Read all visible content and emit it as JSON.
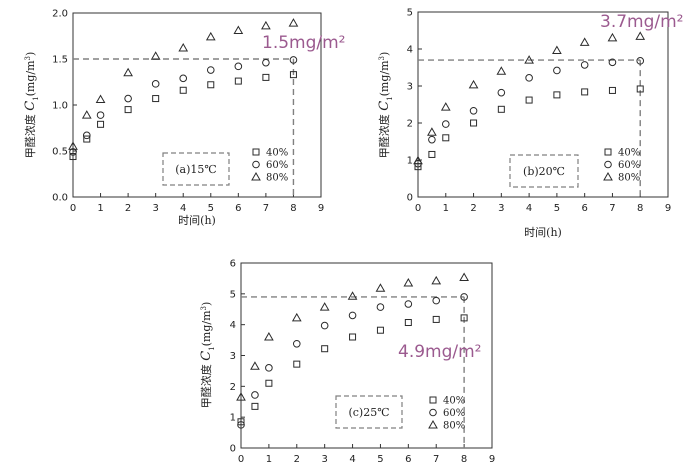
{
  "chart_data": [
    {
      "type": "scatter",
      "xlabel": "时间(h)",
      "ylabel": "甲醛浓度 C₁(mg/m³)",
      "ylabel_main": "甲醛浓度 ",
      "ylabel_var": "C",
      "ylabel_sub": "1",
      "ylabel_unit": "(mg/m",
      "ylabel_sup": "3",
      "ylabel_close": ")",
      "xlim": [
        0,
        9
      ],
      "ylim": [
        0,
        2.0
      ],
      "xticks": [
        "0",
        "1",
        "2",
        "3",
        "4",
        "5",
        "6",
        "7",
        "8",
        "9"
      ],
      "yticks": [
        "0.0",
        "0.5",
        "1.0",
        "1.5",
        "2.0"
      ],
      "condition_label": "(a)15℃",
      "annotation": "1.5mg/m²",
      "reference": {
        "x": 8,
        "y": 1.5
      },
      "series": [
        {
          "name": "40%",
          "marker": "square",
          "x": [
            0,
            0.5,
            1,
            2,
            3,
            4,
            5,
            6,
            7,
            8
          ],
          "y": [
            0.44,
            0.63,
            0.79,
            0.95,
            1.07,
            1.16,
            1.22,
            1.26,
            1.3,
            1.33
          ]
        },
        {
          "name": "60%",
          "marker": "circle",
          "x": [
            0,
            0.5,
            1,
            2,
            3,
            4,
            5,
            6,
            7,
            8
          ],
          "y": [
            0.49,
            0.67,
            0.89,
            1.07,
            1.23,
            1.29,
            1.38,
            1.42,
            1.46,
            1.49
          ]
        },
        {
          "name": "80%",
          "marker": "triangle",
          "x": [
            0,
            0.5,
            1,
            2,
            3,
            4,
            5,
            6,
            7,
            8
          ],
          "y": [
            0.55,
            0.89,
            1.06,
            1.35,
            1.53,
            1.62,
            1.74,
            1.81,
            1.86,
            1.89
          ]
        }
      ]
    },
    {
      "type": "scatter",
      "xlabel": "时间(h)",
      "ylabel": "甲醛浓度 C₁(mg/m³)",
      "ylabel_main": "甲醛浓度 ",
      "ylabel_var": "C",
      "ylabel_sub": "1",
      "ylabel_unit": "(mg/m",
      "ylabel_sup": "3",
      "ylabel_close": ")",
      "xlim": [
        0,
        9
      ],
      "ylim": [
        0,
        5
      ],
      "xticks": [
        "0",
        "1",
        "2",
        "3",
        "4",
        "5",
        "6",
        "7",
        "8",
        "9"
      ],
      "yticks": [
        "0",
        "1",
        "2",
        "3",
        "4",
        "5"
      ],
      "condition_label": "(b)20℃",
      "annotation": "3.7mg/m²",
      "reference": {
        "x": 8,
        "y": 3.7
      },
      "series": [
        {
          "name": "40%",
          "marker": "square",
          "x": [
            0,
            0.5,
            1,
            2,
            3,
            4,
            5,
            6,
            7,
            8
          ],
          "y": [
            0.82,
            1.15,
            1.6,
            2.0,
            2.37,
            2.62,
            2.76,
            2.84,
            2.88,
            2.92
          ]
        },
        {
          "name": "60%",
          "marker": "circle",
          "x": [
            0,
            0.5,
            1,
            2,
            3,
            4,
            5,
            6,
            7,
            8
          ],
          "y": [
            0.9,
            1.55,
            1.97,
            2.33,
            2.82,
            3.22,
            3.42,
            3.57,
            3.64,
            3.68
          ]
        },
        {
          "name": "80%",
          "marker": "triangle",
          "x": [
            0,
            0.5,
            1,
            2,
            3,
            4,
            5,
            6,
            7,
            8
          ],
          "y": [
            0.98,
            1.75,
            2.43,
            3.03,
            3.4,
            3.7,
            3.96,
            4.18,
            4.3,
            4.34
          ]
        }
      ]
    },
    {
      "type": "scatter",
      "xlabel": "时间(h)",
      "ylabel": "甲醛浓度 C₁(mg/m³)",
      "ylabel_main": "甲醛浓度 ",
      "ylabel_var": "C",
      "ylabel_sub": "1",
      "ylabel_unit": "(mg/m",
      "ylabel_sup": "3",
      "ylabel_close": ")",
      "xlim": [
        0,
        9
      ],
      "ylim": [
        0,
        6
      ],
      "xticks": [
        "0",
        "1",
        "2",
        "3",
        "4",
        "5",
        "6",
        "7",
        "8",
        "9"
      ],
      "yticks": [
        "0",
        "1",
        "2",
        "3",
        "4",
        "5",
        "6"
      ],
      "condition_label": "(c)25℃",
      "annotation": "4.9mg/m²",
      "reference": {
        "x": 8,
        "y": 4.9
      },
      "series": [
        {
          "name": "40%",
          "marker": "square",
          "x": [
            0,
            0.5,
            1,
            2,
            3,
            4,
            5,
            6,
            7,
            8
          ],
          "y": [
            0.85,
            1.35,
            2.1,
            2.72,
            3.22,
            3.6,
            3.82,
            4.07,
            4.17,
            4.22
          ]
        },
        {
          "name": "60%",
          "marker": "circle",
          "x": [
            0,
            0.5,
            1,
            2,
            3,
            4,
            5,
            6,
            7,
            8
          ],
          "y": [
            0.75,
            1.72,
            2.6,
            3.38,
            3.97,
            4.3,
            4.57,
            4.67,
            4.78,
            4.9
          ]
        },
        {
          "name": "80%",
          "marker": "triangle",
          "x": [
            0,
            0.5,
            1,
            2,
            3,
            4,
            5,
            6,
            7,
            8
          ],
          "y": [
            1.65,
            2.65,
            3.6,
            4.22,
            4.57,
            4.92,
            5.18,
            5.35,
            5.42,
            5.53
          ]
        }
      ]
    }
  ]
}
